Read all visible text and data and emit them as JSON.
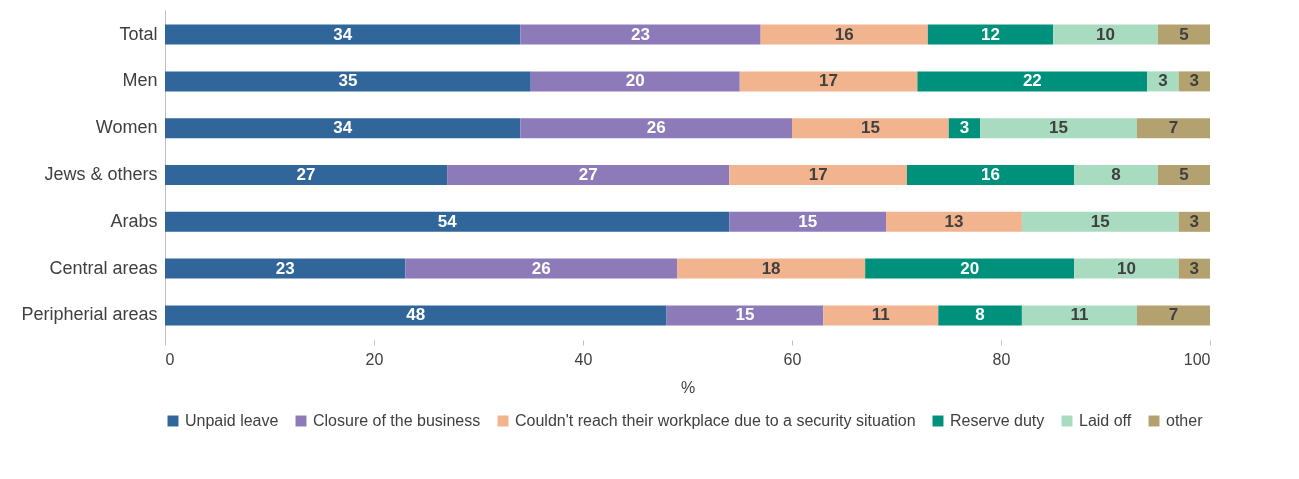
{
  "chart_data": {
    "type": "bar",
    "orientation": "horizontal",
    "stacked": true,
    "data_labels": true,
    "xlabel": "%",
    "xlim": [
      0,
      100
    ],
    "xticks": [
      0,
      20,
      40,
      60,
      80,
      100
    ],
    "grid": false,
    "legend": "bottom",
    "categories": [
      "Total",
      "Men",
      "Women",
      "Jews & others",
      "Arabs",
      "Central areas",
      "Peripherial areas"
    ],
    "series": [
      {
        "name": "Unpaid leave",
        "color": "#31669a",
        "values": [
          34,
          35,
          34,
          27,
          54,
          23,
          48
        ]
      },
      {
        "name": "Closure of the business",
        "color": "#8c7bb8",
        "values": [
          23,
          20,
          26,
          27,
          15,
          26,
          15
        ]
      },
      {
        "name": "Couldn't reach their workplace due to a security situation",
        "color": "#f2b48e",
        "values": [
          16,
          17,
          15,
          17,
          13,
          18,
          11
        ]
      },
      {
        "name": "Reserve duty",
        "color": "#00917c",
        "values": [
          12,
          22,
          3,
          16,
          null,
          20,
          8
        ]
      },
      {
        "name": "Laid off",
        "color": "#a8dbbf",
        "values": [
          10,
          3,
          15,
          8,
          15,
          10,
          11
        ]
      },
      {
        "name": "other",
        "color": "#b3a270",
        "values": [
          5,
          3,
          7,
          5,
          3,
          3,
          7
        ]
      }
    ]
  }
}
